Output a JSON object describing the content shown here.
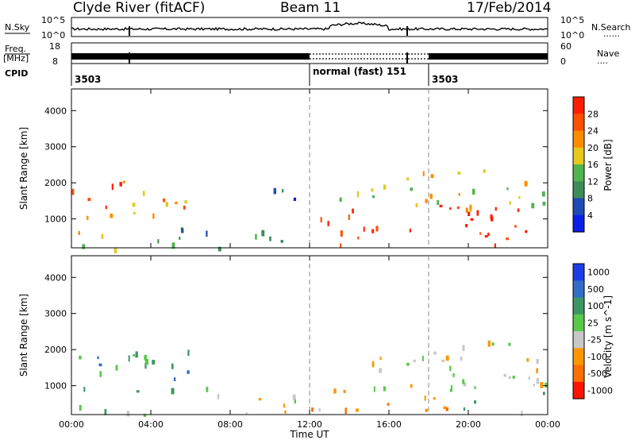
{
  "header": {
    "station": "Clyde River (fitACF)",
    "beam": "Beam 11",
    "date": "17/Feb/2014"
  },
  "strip": {
    "nsky_label": "N.Sky",
    "nsearch_label": "N.Search",
    "nsearch_dots": "......",
    "freq_label": "Freq.",
    "freq_unit": "[MHz]",
    "nave_label": "Nave",
    "nave_dots": "....",
    "cpid_label": "CPID",
    "left_ticks": [
      "10^5",
      "10^0"
    ],
    "right_ticks": [
      "10^5",
      "10^0"
    ],
    "freq_ticks": [
      "18",
      "8"
    ],
    "nave_ticks": [
      "60",
      "0"
    ]
  },
  "cpid": {
    "segments": [
      {
        "label": "3503",
        "start_hour": 0
      },
      {
        "label": "normal (fast) 151",
        "start_hour": 12
      },
      {
        "label": "3503",
        "start_hour": 18
      }
    ]
  },
  "colors": {
    "scale_power": [
      "#0a1ee6",
      "#1e4bb4",
      "#3c8c5a",
      "#50b450",
      "#e6c81e",
      "#ff8c00",
      "#ff5000",
      "#ff1e00"
    ],
    "scale_velocity": [
      "#1e3ce6",
      "#326ec8",
      "#3c9664",
      "#5ac84b",
      "#c8c8c8",
      "#ff9600",
      "#ff6e00",
      "#ff1400"
    ]
  },
  "chart_data": [
    {
      "type": "heatmap",
      "name_panel": "power",
      "ylabel": "Slant Range [km]",
      "colorbar_label": "Power [dB]",
      "colorbar_ticks": [
        "4",
        "8",
        "12",
        "16",
        "20",
        "24",
        "28"
      ],
      "xlim_hours": [
        0,
        24
      ],
      "ylim": [
        200,
        4600
      ],
      "y_ticks": [
        1000,
        2000,
        3000,
        4000
      ],
      "regions": [
        {
          "h0": 0.0,
          "h1": 0.6,
          "r0": 600,
          "r1": 1900,
          "level": 6
        },
        {
          "h0": 0.6,
          "h1": 2.9,
          "r0": 700,
          "r1": 2100,
          "level": 6
        },
        {
          "h0": 3.0,
          "h1": 6.9,
          "r0": 1100,
          "r1": 2100,
          "level": 5
        },
        {
          "h0": 0.0,
          "h1": 3.0,
          "r0": 200,
          "r1": 600,
          "level": 3
        },
        {
          "h0": 4.0,
          "h1": 12.0,
          "r0": 200,
          "r1": 800,
          "level": 2
        },
        {
          "h0": 9.0,
          "h1": 11.6,
          "r0": 1500,
          "r1": 2000,
          "level": 1
        },
        {
          "h0": 12.0,
          "h1": 24.0,
          "r0": 300,
          "r1": 1400,
          "level": 7
        },
        {
          "h0": 13.0,
          "h1": 24.0,
          "r0": 1300,
          "r1": 2400,
          "level": 4
        }
      ]
    },
    {
      "type": "heatmap",
      "name_panel": "velocity",
      "ylabel": "Slant Range [km]",
      "colorbar_label": "Velocity [m s^-1]",
      "colorbar_ticks": [
        "1000",
        "500",
        "100",
        "25",
        "-25",
        "-100",
        "-500",
        "-1000"
      ],
      "xlim_hours": [
        0,
        24
      ],
      "xlabel": "Time UT",
      "x_ticks": [
        "00:00",
        "04:00",
        "08:00",
        "12:00",
        "16:00",
        "20:00",
        "00:00"
      ],
      "ylim": [
        200,
        4600
      ],
      "y_ticks": [
        1000,
        2000,
        3000,
        4000
      ],
      "regions": [
        {
          "h0": 0.0,
          "h1": 7.0,
          "r0": 700,
          "r1": 2000,
          "level": 2
        },
        {
          "h0": 0.0,
          "h1": 4.0,
          "r0": 200,
          "r1": 700,
          "level": 3
        },
        {
          "h0": 6.5,
          "h1": 12.0,
          "r0": 200,
          "r1": 800,
          "level": 4
        },
        {
          "h0": 12.0,
          "h1": 20.0,
          "r0": 300,
          "r1": 1000,
          "level": 5
        },
        {
          "h0": 15.0,
          "h1": 24.0,
          "r0": 900,
          "r1": 2300,
          "level": 4
        },
        {
          "h0": 19.0,
          "h1": 24.0,
          "r0": 300,
          "r1": 1300,
          "level": 3
        }
      ]
    }
  ]
}
